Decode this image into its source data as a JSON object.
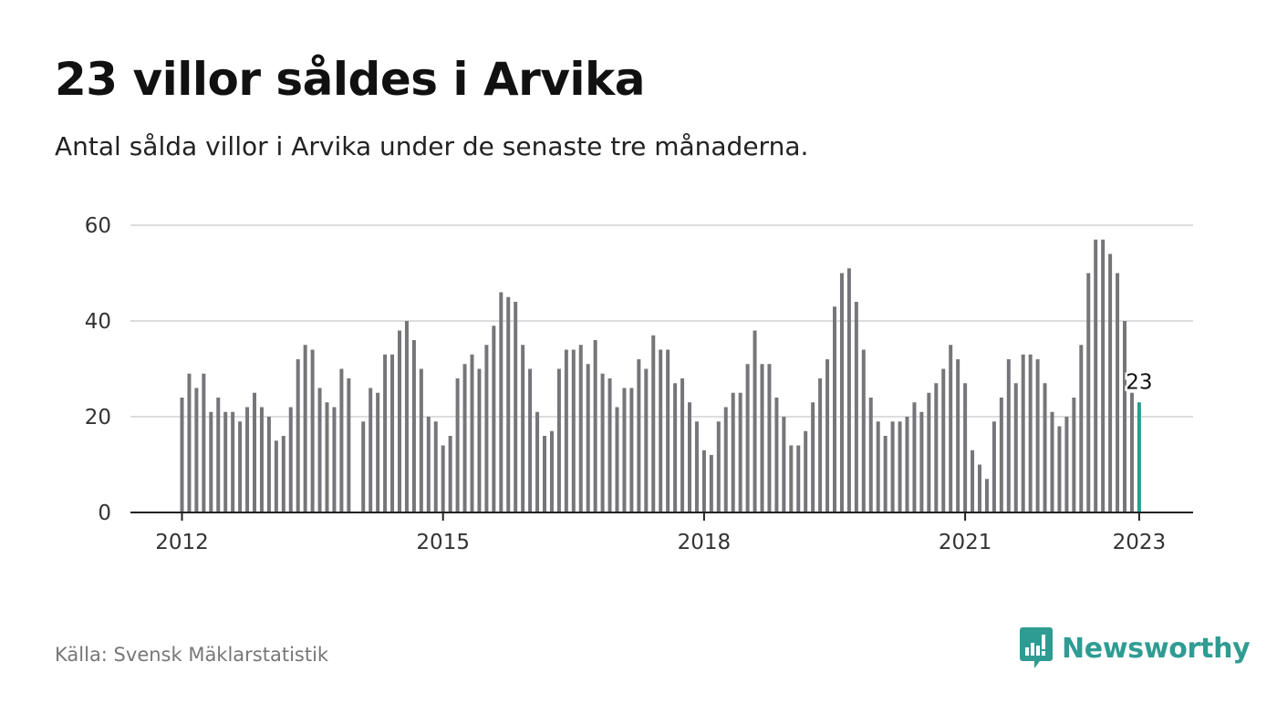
{
  "header": {
    "title": "23 villor såldes i Arvika",
    "subtitle": "Antal sålda villor i Arvika under de senaste tre månaderna."
  },
  "footer": {
    "source": "Källa: Svensk Mäklarstatistik",
    "brand": "Newsworthy"
  },
  "colors": {
    "bar": "#76767a",
    "highlight": "#2a9d8f",
    "grid": "#dddddd",
    "axis": "#222222",
    "brand": "#2f9c93"
  },
  "chart_data": {
    "type": "bar",
    "x_start": "2012-01",
    "x_end": "2023-01",
    "x_ticks": [
      "2012",
      "2015",
      "2018",
      "2021",
      "2023"
    ],
    "y_ticks": [
      0,
      20,
      40,
      60
    ],
    "ylim": [
      0,
      60
    ],
    "grid": true,
    "highlight_label": "23",
    "values": [
      24,
      29,
      26,
      29,
      21,
      24,
      21,
      21,
      19,
      22,
      25,
      22,
      20,
      15,
      16,
      22,
      32,
      35,
      34,
      26,
      23,
      22,
      30,
      28,
      0,
      19,
      26,
      25,
      33,
      33,
      38,
      40,
      36,
      30,
      20,
      19,
      14,
      16,
      28,
      31,
      33,
      30,
      35,
      39,
      46,
      45,
      44,
      35,
      30,
      21,
      16,
      17,
      30,
      34,
      34,
      35,
      31,
      36,
      29,
      28,
      22,
      26,
      26,
      32,
      30,
      37,
      34,
      34,
      27,
      28,
      23,
      19,
      13,
      12,
      19,
      22,
      25,
      25,
      31,
      38,
      31,
      31,
      24,
      20,
      14,
      14,
      17,
      23,
      28,
      32,
      43,
      50,
      51,
      44,
      34,
      24,
      19,
      16,
      19,
      19,
      20,
      23,
      21,
      25,
      27,
      30,
      35,
      32,
      27,
      13,
      10,
      7,
      19,
      24,
      32,
      27,
      33,
      33,
      32,
      27,
      21,
      18,
      20,
      24,
      35,
      50,
      57,
      57,
      54,
      50,
      40,
      25,
      23
    ]
  }
}
